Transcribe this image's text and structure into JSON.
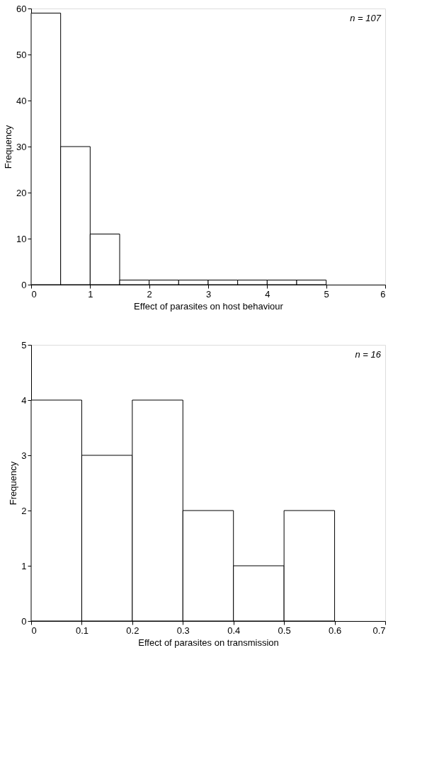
{
  "chart_data": [
    {
      "type": "histogram",
      "xlabel": "Effect of parasites on host behaviour",
      "ylabel": "Frequency",
      "bins": [
        0,
        0.5,
        1,
        1.5,
        2,
        2.5,
        3,
        3.5,
        4,
        4.5,
        5
      ],
      "values": [
        59,
        30,
        11,
        1,
        1,
        1,
        1,
        1,
        1,
        1
      ],
      "xlim": [
        0,
        6
      ],
      "xticks": [
        0,
        1,
        2,
        3,
        4,
        5,
        6
      ],
      "ylim": [
        0,
        60
      ],
      "yticks": [
        0,
        10,
        20,
        30,
        40,
        50,
        60
      ],
      "annotations": [
        "n = 107"
      ],
      "color": "#ffffff"
    },
    {
      "type": "histogram",
      "xlabel": "Effect of parasites on transmission",
      "ylabel": "Frequency",
      "bins": [
        0,
        0.1,
        0.2,
        0.3,
        0.4,
        0.5,
        0.6
      ],
      "values": [
        4,
        3,
        4,
        2,
        1,
        2
      ],
      "xlim": [
        0,
        0.7
      ],
      "xticks": [
        0,
        0.1,
        0.2,
        0.3,
        0.4,
        0.5,
        0.6,
        0.7
      ],
      "ylim": [
        0,
        5
      ],
      "yticks": [
        0,
        1,
        2,
        3,
        4,
        5
      ],
      "annotations": [
        "n = 16"
      ],
      "color": "#ffffff"
    }
  ]
}
